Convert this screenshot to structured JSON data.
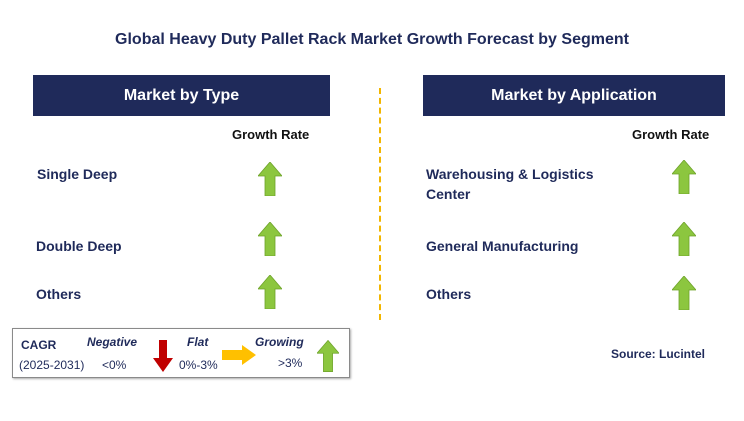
{
  "title": "Global Heavy Duty Pallet Rack Market Growth Forecast by Segment",
  "left_panel": {
    "header": "Market by Type",
    "column_header": "Growth Rate",
    "rows": [
      {
        "label": "Single Deep",
        "trend": "growing"
      },
      {
        "label": "Double Deep",
        "trend": "growing"
      },
      {
        "label": "Others",
        "trend": "growing"
      }
    ]
  },
  "right_panel": {
    "header": "Market by Application",
    "column_header": "Growth Rate",
    "rows": [
      {
        "label_line1": "Warehousing & Logistics",
        "label_line2": "Center",
        "trend": "growing"
      },
      {
        "label": "General Manufacturing",
        "trend": "growing"
      },
      {
        "label": "Others",
        "trend": "growing"
      }
    ]
  },
  "legend": {
    "cagr_label": "CAGR",
    "period": "(2025-2031)",
    "negative": {
      "label": "Negative",
      "range": "<0%",
      "icon": "red-down-arrow-icon"
    },
    "flat": {
      "label": "Flat",
      "range": "0%-3%",
      "icon": "yellow-right-arrow-icon"
    },
    "growing": {
      "label": "Growing",
      "range": ">3%",
      "icon": "green-up-arrow-icon"
    }
  },
  "source": "Source: Lucintel",
  "colors": {
    "header_bg": "#1f2a5a",
    "growing": "#8cc63f",
    "negative": "#c00000",
    "flat": "#ffc000",
    "divider": "#f2b600"
  }
}
